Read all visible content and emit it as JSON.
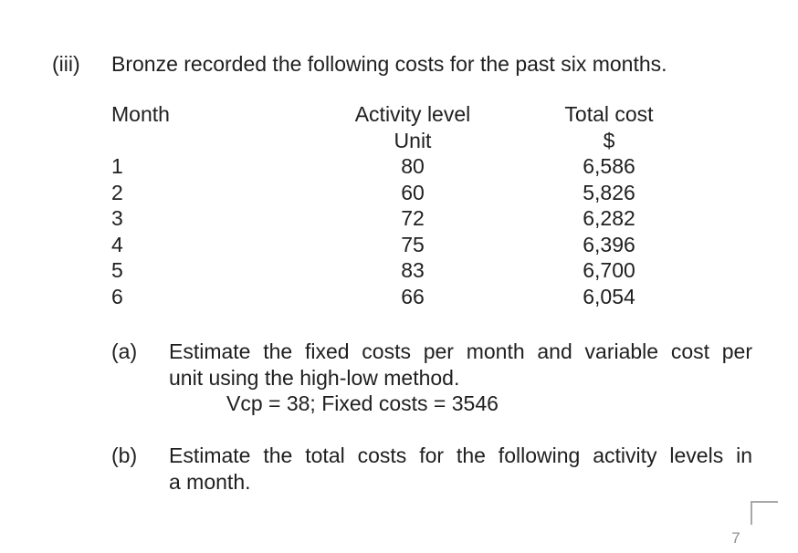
{
  "colors": {
    "text": "#202020",
    "muted": "#8f8f8f",
    "bracket": "#a8a8a8",
    "background": "#ffffff"
  },
  "section": {
    "label": "(iii)",
    "intro": "Bronze recorded the following costs for the past six months."
  },
  "table": {
    "headers": {
      "month": "Month",
      "activity": "Activity level",
      "total": "Total cost"
    },
    "subheaders": {
      "activity_unit": "Unit",
      "total_unit": "$"
    },
    "rows": [
      {
        "month": "1",
        "activity": "80",
        "total": "6,586"
      },
      {
        "month": "2",
        "activity": "60",
        "total": "5,826"
      },
      {
        "month": "3",
        "activity": "72",
        "total": "6,282"
      },
      {
        "month": "4",
        "activity": "75",
        "total": "6,396"
      },
      {
        "month": "5",
        "activity": "83",
        "total": "6,700"
      },
      {
        "month": "6",
        "activity": "66",
        "total": "6,054"
      }
    ]
  },
  "questions": {
    "a": {
      "label": "(a)",
      "line1": "Estimate the fixed costs per month and variable cost per",
      "line2": "unit using the high-low method.",
      "answer": "Vcp = 38; Fixed costs = 3546"
    },
    "b": {
      "label": "(b)",
      "line1": "Estimate the total costs for the following activity levels in",
      "line2": "a month."
    }
  },
  "footer": {
    "page_number": "7"
  }
}
